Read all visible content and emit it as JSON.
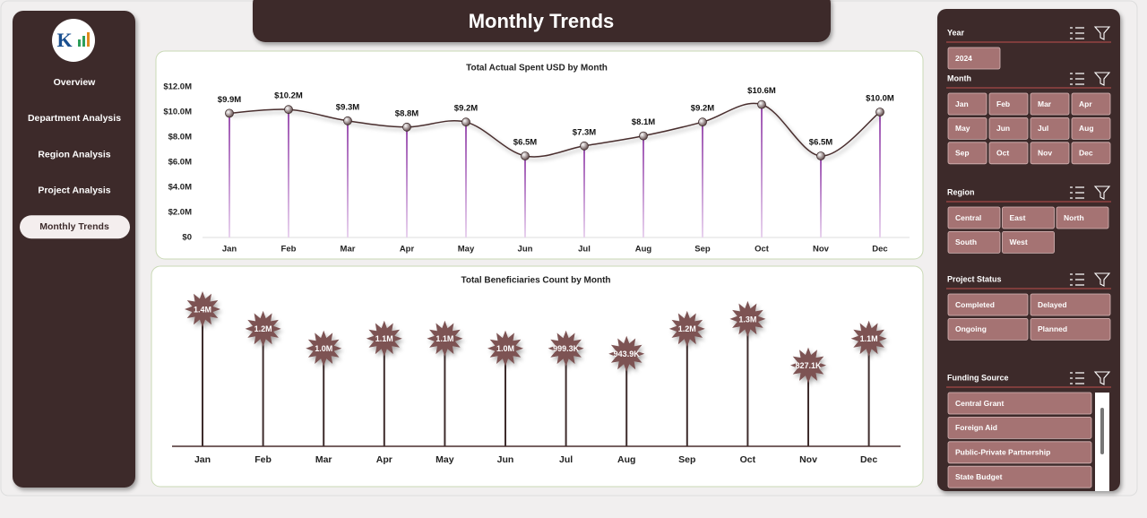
{
  "header": {
    "title": "Monthly Trends"
  },
  "sidebar": {
    "items": [
      "Overview",
      "Department Analysis",
      "Region Analysis",
      "Project Analysis",
      "Monthly Trends"
    ]
  },
  "chart_data": [
    {
      "type": "line",
      "title": "Total Actual Spent USD by Month",
      "categories": [
        "Jan",
        "Feb",
        "Mar",
        "Apr",
        "May",
        "Jun",
        "Jul",
        "Aug",
        "Sep",
        "Oct",
        "Nov",
        "Dec"
      ],
      "values": [
        9900000,
        10200000,
        9300000,
        8800000,
        9200000,
        6500000,
        7300000,
        8100000,
        9200000,
        10600000,
        6500000,
        10000000
      ],
      "value_labels": [
        "$9.9M",
        "$10.2M",
        "$9.3M",
        "$8.8M",
        "$9.2M",
        "$6.5M",
        "$7.3M",
        "$8.1M",
        "$9.2M",
        "$10.6M",
        "$6.5M",
        "$10.0M"
      ],
      "color": "#4a2f2f",
      "ylim": [
        0,
        12000000
      ],
      "yticks": [
        {
          "value": 0,
          "label": "$0"
        },
        {
          "value": 2000000,
          "label": "$2.0M"
        },
        {
          "value": 4000000,
          "label": "$4.0M"
        },
        {
          "value": 6000000,
          "label": "$6.0M"
        },
        {
          "value": 8000000,
          "label": "$8.0M"
        },
        {
          "value": 10000000,
          "label": "$10.0M"
        },
        {
          "value": 12000000,
          "label": "$12.0M"
        }
      ]
    },
    {
      "type": "lollipop",
      "title": "Total Beneficiaries Count by Month",
      "categories": [
        "Jan",
        "Feb",
        "Mar",
        "Apr",
        "May",
        "Jun",
        "Jul",
        "Aug",
        "Sep",
        "Oct",
        "Nov",
        "Dec"
      ],
      "values": [
        1400000,
        1200000,
        1000000,
        1100000,
        1100000,
        1000000,
        999300,
        943900,
        1200000,
        1300000,
        827100,
        1100000
      ],
      "value_labels": [
        "1.4M",
        "1.2M",
        "1.0M",
        "1.1M",
        "1.1M",
        "1.0M",
        "999.3K",
        "943.9K",
        "1.2M",
        "1.3M",
        "827.1K",
        "1.1M"
      ],
      "color": "#7d5353"
    }
  ],
  "slicers": [
    {
      "title": "Year",
      "items": [
        "2024"
      ]
    },
    {
      "title": "Month",
      "items": [
        "Jan",
        "Feb",
        "Mar",
        "Apr",
        "May",
        "Jun",
        "Jul",
        "Aug",
        "Sep",
        "Oct",
        "Nov",
        "Dec"
      ]
    },
    {
      "title": "Region",
      "items": [
        "Central",
        "East",
        "North",
        "South",
        "West"
      ]
    },
    {
      "title": "Project Status",
      "items": [
        "Completed",
        "Delayed",
        "Ongoing",
        "Planned"
      ]
    },
    {
      "title": "Funding Source",
      "items": [
        "Central Grant",
        "Foreign Aid",
        "Public-Private Partnership",
        "State Budget"
      ]
    }
  ]
}
